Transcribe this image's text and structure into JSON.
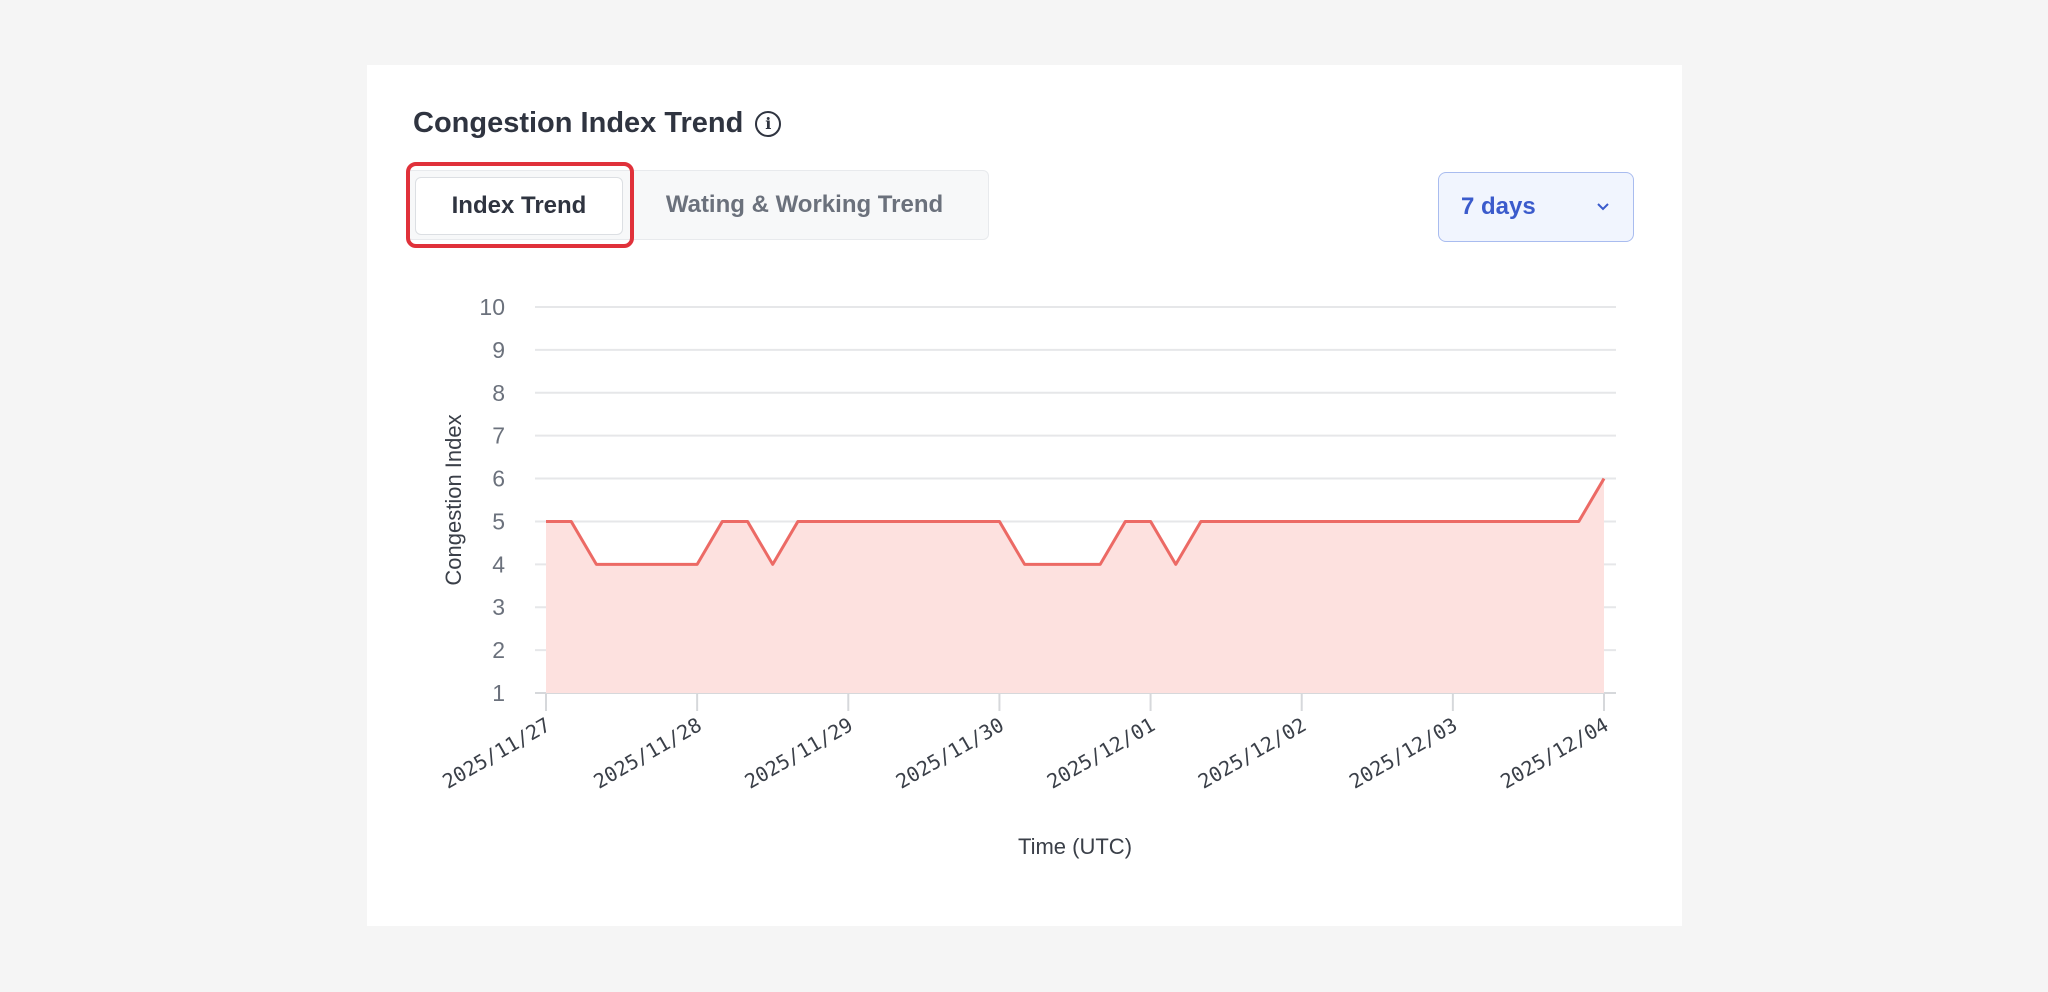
{
  "card": {
    "title": "Congestion Index Trend",
    "info_icon": "info-circle-icon",
    "tabs": [
      {
        "label": "Index Trend",
        "active": true
      },
      {
        "label": "Wating & Working Trend",
        "active": false
      }
    ],
    "range_select": {
      "value": "7 days",
      "icon": "chevron-down-icon"
    }
  },
  "chart_data": {
    "type": "area",
    "title": "",
    "xlabel": "Time (UTC)",
    "ylabel": "Congestion Index",
    "ylim": [
      1,
      10
    ],
    "yticks": [
      1,
      2,
      3,
      4,
      5,
      6,
      7,
      8,
      9,
      10
    ],
    "xticks": [
      "2025/11/27",
      "2025/11/28",
      "2025/11/29",
      "2025/11/30",
      "2025/12/01",
      "2025/12/02",
      "2025/12/03",
      "2025/12/04"
    ],
    "grid": true,
    "colors": {
      "line": "#ec6a65",
      "fill": "#fde1df"
    },
    "x": [
      "2025/11/27 00:00",
      "2025/11/27 04:00",
      "2025/11/27 08:00",
      "2025/11/27 12:00",
      "2025/11/27 16:00",
      "2025/11/27 20:00",
      "2025/11/28 00:00",
      "2025/11/28 04:00",
      "2025/11/28 08:00",
      "2025/11/28 12:00",
      "2025/11/28 16:00",
      "2025/11/28 20:00",
      "2025/11/29 00:00",
      "2025/11/29 04:00",
      "2025/11/29 08:00",
      "2025/11/29 12:00",
      "2025/11/29 16:00",
      "2025/11/29 20:00",
      "2025/11/30 00:00",
      "2025/11/30 04:00",
      "2025/11/30 08:00",
      "2025/11/30 12:00",
      "2025/11/30 16:00",
      "2025/11/30 20:00",
      "2025/12/01 00:00",
      "2025/12/01 04:00",
      "2025/12/01 08:00",
      "2025/12/01 12:00",
      "2025/12/01 16:00",
      "2025/12/01 20:00",
      "2025/12/02 00:00",
      "2025/12/02 04:00",
      "2025/12/02 08:00",
      "2025/12/02 12:00",
      "2025/12/02 16:00",
      "2025/12/02 20:00",
      "2025/12/03 00:00",
      "2025/12/03 04:00",
      "2025/12/03 08:00",
      "2025/12/03 12:00",
      "2025/12/03 16:00",
      "2025/12/03 20:00",
      "2025/12/04 00:00"
    ],
    "values": [
      5,
      5,
      4,
      4,
      4,
      4,
      4,
      5,
      5,
      4,
      5,
      5,
      5,
      5,
      5,
      5,
      5,
      5,
      5,
      4,
      4,
      4,
      4,
      5,
      5,
      4,
      5,
      5,
      5,
      5,
      5,
      5,
      5,
      5,
      5,
      5,
      5,
      5,
      5,
      5,
      5,
      5,
      6
    ]
  }
}
